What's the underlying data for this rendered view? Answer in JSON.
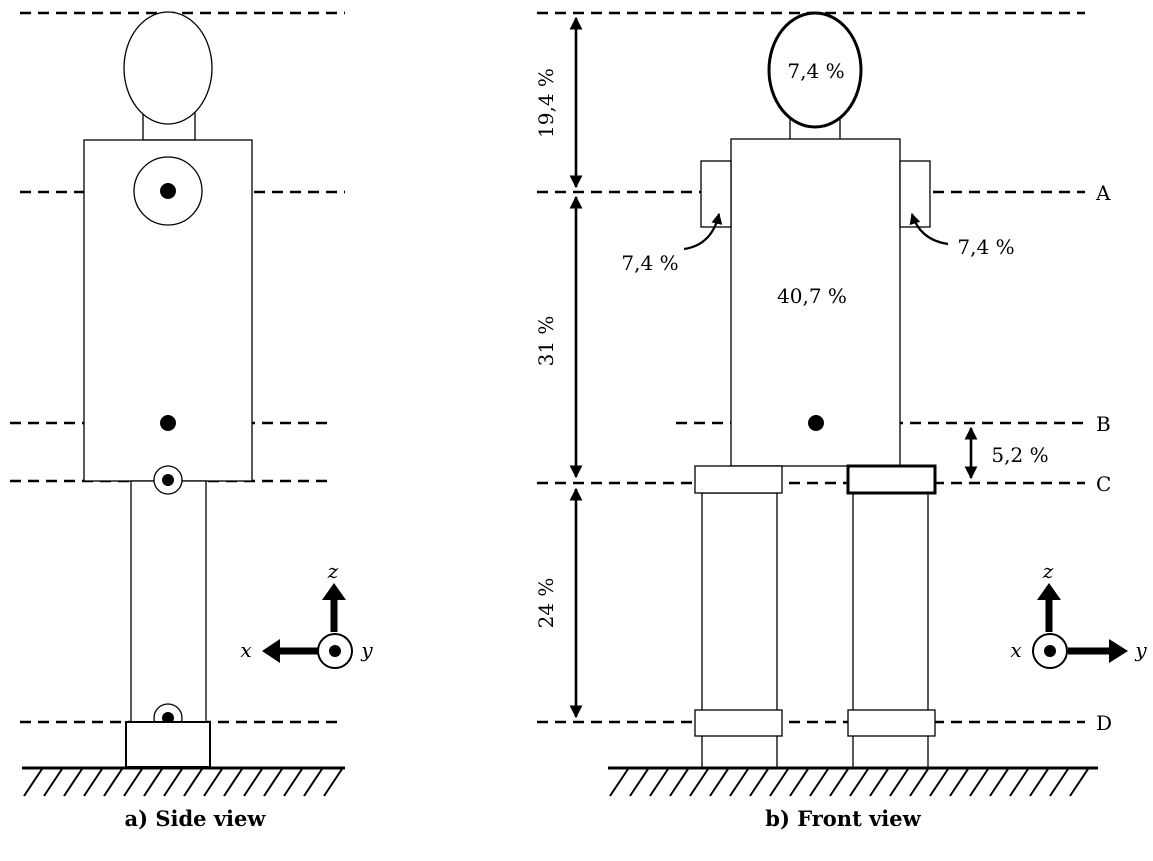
{
  "side_view": {
    "caption": "a) Side view",
    "axes": {
      "horizontal": "x",
      "vertical": "z",
      "out_of_page": "y"
    }
  },
  "front_view": {
    "caption": "b) Front view",
    "axes": {
      "horizontal": "y",
      "vertical": "z",
      "out_of_page": "x"
    },
    "segment_masses": {
      "head": "7,4 %",
      "left_arm": "7,4 %",
      "right_arm": "7,4 %",
      "trunk": "40,7 %"
    },
    "height_dimensions": {
      "top_to_a": "19,4 %",
      "a_to_c": "31 %",
      "c_to_d": "24 %",
      "b_to_c": "5,2 %"
    },
    "levels": [
      "A",
      "B",
      "C",
      "D"
    ]
  }
}
